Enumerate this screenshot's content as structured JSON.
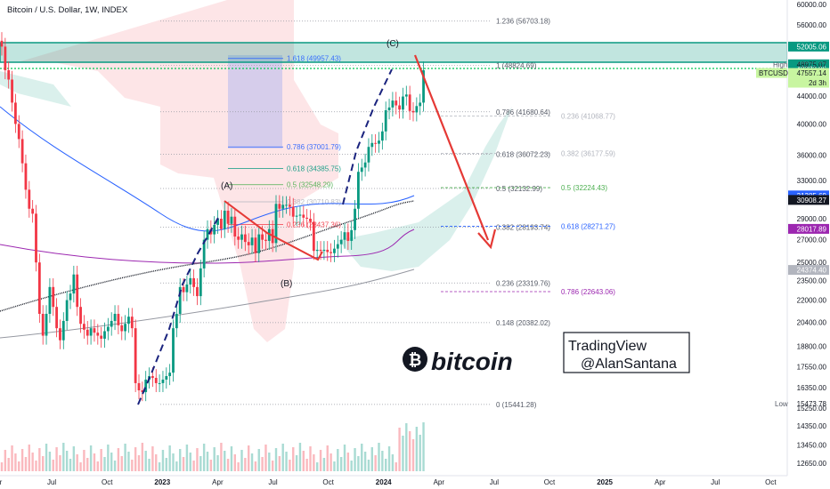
{
  "header": {
    "title": "Bitcoin / U.S. Dollar, 1W, INDEX"
  },
  "chart_data": {
    "type": "candlestick",
    "symbol": "BTCUSD",
    "timeframe": "1W",
    "x_ticks": [
      "Apr",
      "Jul",
      "Oct",
      "2023",
      "Apr",
      "Jul",
      "Oct",
      "2024",
      "Apr",
      "Jul",
      "Oct",
      "2025",
      "Apr",
      "Jul",
      "Oct"
    ],
    "y_ticks": [
      "60000.00",
      "56000.00",
      "52000.00",
      "44000.00",
      "40000.00",
      "36000.00",
      "33000.00",
      "29000.00",
      "27000.00",
      "25000.00",
      "23500.00",
      "22000.00",
      "20400.00",
      "18800.00",
      "17550.00",
      "16350.00",
      "15250.00",
      "14350.00",
      "13450.00",
      "12650.00"
    ],
    "price_labels": [
      {
        "text": "52005.06",
        "color": "#089981"
      },
      {
        "text": "48975.07",
        "color": "#089981"
      },
      {
        "text": "48222.96",
        "color": "#089981"
      },
      {
        "text": "47557.14",
        "color": "#c8f5a0"
      },
      {
        "text": "31385.69",
        "color": "#2962ff"
      },
      {
        "text": "30908.27",
        "color": "#131722"
      },
      {
        "text": "28017.89",
        "color": "#9c27b0"
      },
      {
        "text": "24374.40",
        "color": "#b2b5be"
      }
    ],
    "high": {
      "label": "High",
      "value": "48975.07"
    },
    "low": {
      "label": "Low",
      "value": "15473.78"
    },
    "last": {
      "symbol": "BTCUSD",
      "value": "47557.14",
      "countdown": "2d 3h"
    },
    "fib_main": [
      {
        "label": "1.236 (56703.18)"
      },
      {
        "label": "1 (48824.69)"
      },
      {
        "label": "0.786 (41680.64)"
      },
      {
        "label": "0.618 (36072.23)"
      },
      {
        "label": "0.5 (32132.99)"
      },
      {
        "label": "0.382 (28193.74)"
      },
      {
        "label": "0.236 (23319.76)"
      },
      {
        "label": "0.148 (20382.02)"
      },
      {
        "label": "0 (15441.28)"
      }
    ],
    "fib_ext": [
      {
        "label": "1.618 (49957.43)"
      },
      {
        "label": "0.786 (37001.79)"
      },
      {
        "label": "0.618 (34385.75)"
      },
      {
        "label": "0.5 (32548.29)"
      },
      {
        "label": "0.382 (30710.83)"
      },
      {
        "label": "0.236 (28437.36)"
      }
    ],
    "fib_right": [
      {
        "label": "0.236 (41068.77)"
      },
      {
        "label": "0.382 (36177.59)"
      },
      {
        "label": "0.5 (32224.43)"
      },
      {
        "label": "0.618 (28271.27)"
      },
      {
        "label": "0.786 (22643.06)"
      }
    ],
    "wave_labels": {
      "a": "(A)",
      "b": "(B)",
      "c": "(C)"
    },
    "weekly_closes": [
      52000,
      48000,
      46500,
      43000,
      40000,
      38000,
      35000,
      32000,
      30000,
      29500,
      25000,
      21000,
      19500,
      21000,
      23000,
      21500,
      20000,
      19200,
      20500,
      22000,
      22500,
      24000,
      21500,
      20300,
      19900,
      19500,
      20000,
      19700,
      19500,
      19300,
      19800,
      20100,
      20500,
      21000,
      20200,
      19800,
      20300,
      20800,
      20000,
      16600,
      16200,
      16100,
      16800,
      17000,
      16900,
      16600,
      16600,
      16800,
      17000,
      17200,
      20000,
      21000,
      23000,
      22600,
      23200,
      23700,
      23000,
      22300,
      24500,
      27000,
      28000,
      27500,
      28400,
      29000,
      28000,
      29800,
      28500,
      29200,
      27300,
      27000,
      27500,
      26800,
      26500,
      27200,
      25800,
      27500,
      27000,
      26900,
      28000,
      26700,
      30500,
      30000,
      30400,
      30400,
      30200,
      29200,
      29300,
      29400,
      29100,
      29000,
      28700,
      26000,
      26100,
      26000,
      26100,
      25900,
      25800,
      26200,
      26600,
      27000,
      27700,
      26900,
      27900,
      30000,
      34000,
      34500,
      35100,
      37000,
      37500,
      37400,
      37800,
      39000,
      41900,
      42300,
      43300,
      42600,
      42000,
      43900,
      44200,
      41800,
      41600,
      42500,
      43000,
      48000
    ],
    "volume_max_label": ""
  },
  "watermark": {
    "brand": "bitcoin",
    "line1": "TradingView",
    "line2": "@AlanSantana"
  }
}
